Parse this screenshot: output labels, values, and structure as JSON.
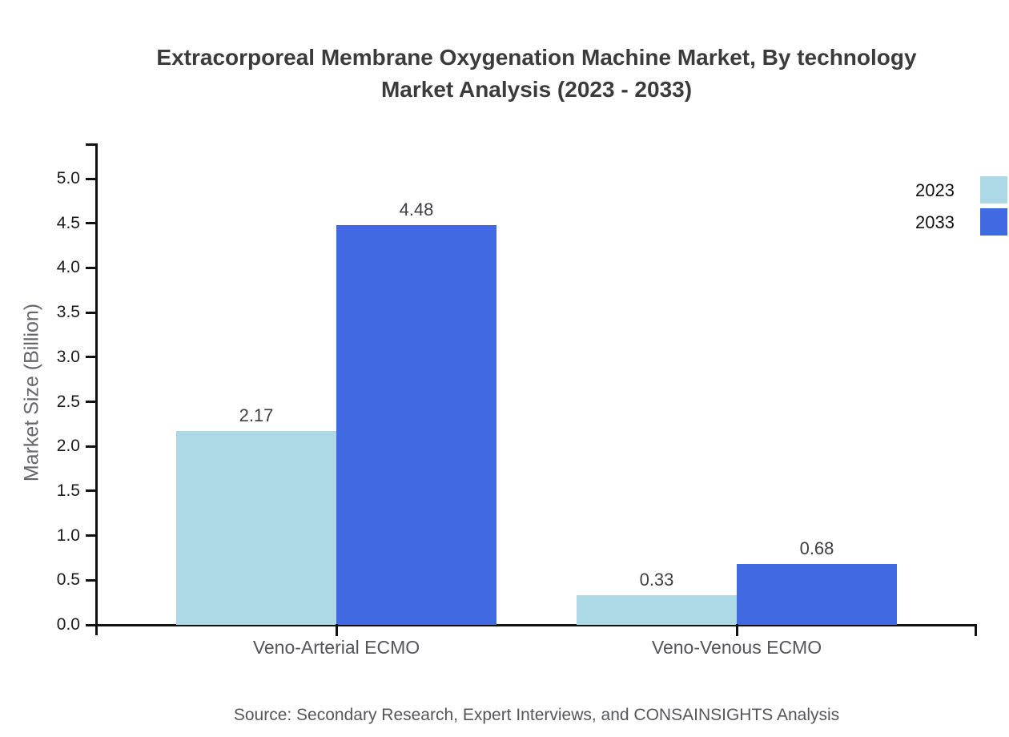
{
  "title": {
    "line1": "Extracorporeal Membrane Oxygenation Machine Market, By technology",
    "line2": "Market Analysis (2023 - 2033)"
  },
  "source_note": "Source: Secondary Research, Expert Interviews, and CONSAINSIGHTS Analysis",
  "colors": {
    "series_2023": "#ADD8E6",
    "series_2033": "#4169E1",
    "axis": "#111111",
    "title_text": "#3b3b3b",
    "muted_text": "#55565a"
  },
  "chart_data": {
    "type": "bar",
    "title": "Extracorporeal Membrane Oxygenation Machine Market, By technology Market Analysis (2023 - 2033)",
    "categories": [
      "Veno-Arterial ECMO",
      "Veno-Venous ECMO"
    ],
    "series": [
      {
        "name": "2023",
        "color": "#ADD8E6",
        "values": [
          2.17,
          0.33
        ]
      },
      {
        "name": "2033",
        "color": "#4169E1",
        "values": [
          4.48,
          0.68
        ]
      }
    ],
    "value_labels": [
      "2.17",
      "4.48",
      "0.33",
      "0.68"
    ],
    "xlabel": "",
    "ylabel": "Market Size (Billion)",
    "ylim": [
      0,
      5.25
    ],
    "yticks": [
      "0.0",
      "0.5",
      "1.0",
      "1.5",
      "2.0",
      "2.5",
      "3.0",
      "3.5",
      "4.0",
      "4.5",
      "5.0"
    ],
    "grid": false,
    "legend_position": "top-right",
    "legend_entries": [
      "2023",
      "2033"
    ]
  }
}
